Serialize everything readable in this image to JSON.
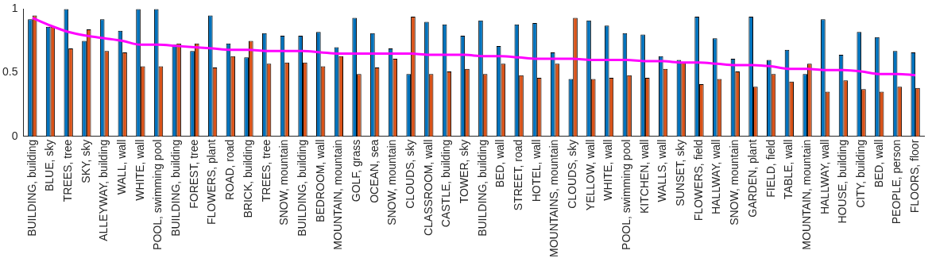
{
  "chart_data": {
    "type": "bar",
    "categories": [
      "BUILDING, building",
      "BLUE, sky",
      "TREES, tree",
      "SKY, sky",
      "ALLEYWAY, building",
      "WALL, wall",
      "WHITE, wall",
      "POOL, swimming pool",
      "BUILDING, building",
      "FOREST, tree",
      "FLOWERS, plant",
      "ROAD, road",
      "BRICK, building",
      "TREES, tree",
      "SNOW, mountain",
      "BUILDING, building",
      "BEDROOM, wall",
      "MOUNTAIN, mountain",
      "GOLF, grass",
      "OCEAN, sea",
      "SNOW, mountain",
      "CLOUDS, sky",
      "CLASSROOM, wall",
      "CASTLE, building",
      "TOWER, sky",
      "BUILDING, building",
      "BED, wall",
      "STREET, road",
      "HOTEL, wall",
      "MOUNTAINS, mountain",
      "CLOUDS, sky",
      "YELLOW, wall",
      "WHITE, wall",
      "POOL, swimming pool",
      "KITCHEN, wall",
      "WALLS, wall",
      "SUNSET, sky",
      "FLOWERS, field",
      "HALLWAY, wall",
      "SNOW, mountain",
      "GARDEN, plant",
      "FIELD, field",
      "TABLE, wall",
      "MOUNTAIN, mountain",
      "HALLWAY, wall",
      "HOUSE, building",
      "CITY, building",
      "BED, wall",
      "PEOPLE, person",
      "FLOORS, floor"
    ],
    "series": [
      {
        "color": "#0072bd",
        "values": [
          0.92,
          0.86,
          1.0,
          0.75,
          0.92,
          0.83,
          1.0,
          1.0,
          0.72,
          0.67,
          0.95,
          0.73,
          0.62,
          0.81,
          0.79,
          0.79,
          0.82,
          0.7,
          0.93,
          0.81,
          0.69,
          0.49,
          0.9,
          0.88,
          0.79,
          0.91,
          0.71,
          0.88,
          0.89,
          0.66,
          0.45,
          0.91,
          0.87,
          0.81,
          0.8,
          0.63,
          0.6,
          0.94,
          0.77,
          0.61,
          0.94,
          0.6,
          0.68,
          0.49,
          0.92,
          0.64,
          0.82,
          0.78,
          0.67,
          0.66
        ]
      },
      {
        "color": "#d95319",
        "values": [
          0.95,
          0.86,
          0.69,
          0.84,
          0.67,
          0.66,
          0.55,
          0.55,
          0.73,
          0.73,
          0.54,
          0.63,
          0.75,
          0.57,
          0.58,
          0.58,
          0.55,
          0.63,
          0.49,
          0.54,
          0.61,
          0.94,
          0.49,
          0.51,
          0.53,
          0.49,
          0.57,
          0.48,
          0.46,
          0.57,
          0.93,
          0.45,
          0.46,
          0.48,
          0.46,
          0.53,
          0.58,
          0.41,
          0.45,
          0.51,
          0.39,
          0.49,
          0.43,
          0.57,
          0.35,
          0.44,
          0.37,
          0.35,
          0.39,
          0.38
        ]
      },
      {
        "type": "line",
        "color": "#ff00ff",
        "values": [
          0.93,
          0.87,
          0.82,
          0.79,
          0.77,
          0.75,
          0.72,
          0.72,
          0.71,
          0.7,
          0.69,
          0.68,
          0.68,
          0.67,
          0.67,
          0.67,
          0.66,
          0.65,
          0.65,
          0.65,
          0.65,
          0.65,
          0.64,
          0.64,
          0.64,
          0.63,
          0.63,
          0.62,
          0.61,
          0.61,
          0.61,
          0.6,
          0.6,
          0.6,
          0.59,
          0.59,
          0.58,
          0.58,
          0.57,
          0.56,
          0.56,
          0.55,
          0.53,
          0.53,
          0.52,
          0.52,
          0.51,
          0.49,
          0.49,
          0.48
        ]
      }
    ],
    "ylim": [
      0,
      1
    ],
    "yticks": [
      0,
      0.5,
      1
    ],
    "grid": false,
    "legend": false,
    "marker": "none",
    "line_style": "solid"
  }
}
